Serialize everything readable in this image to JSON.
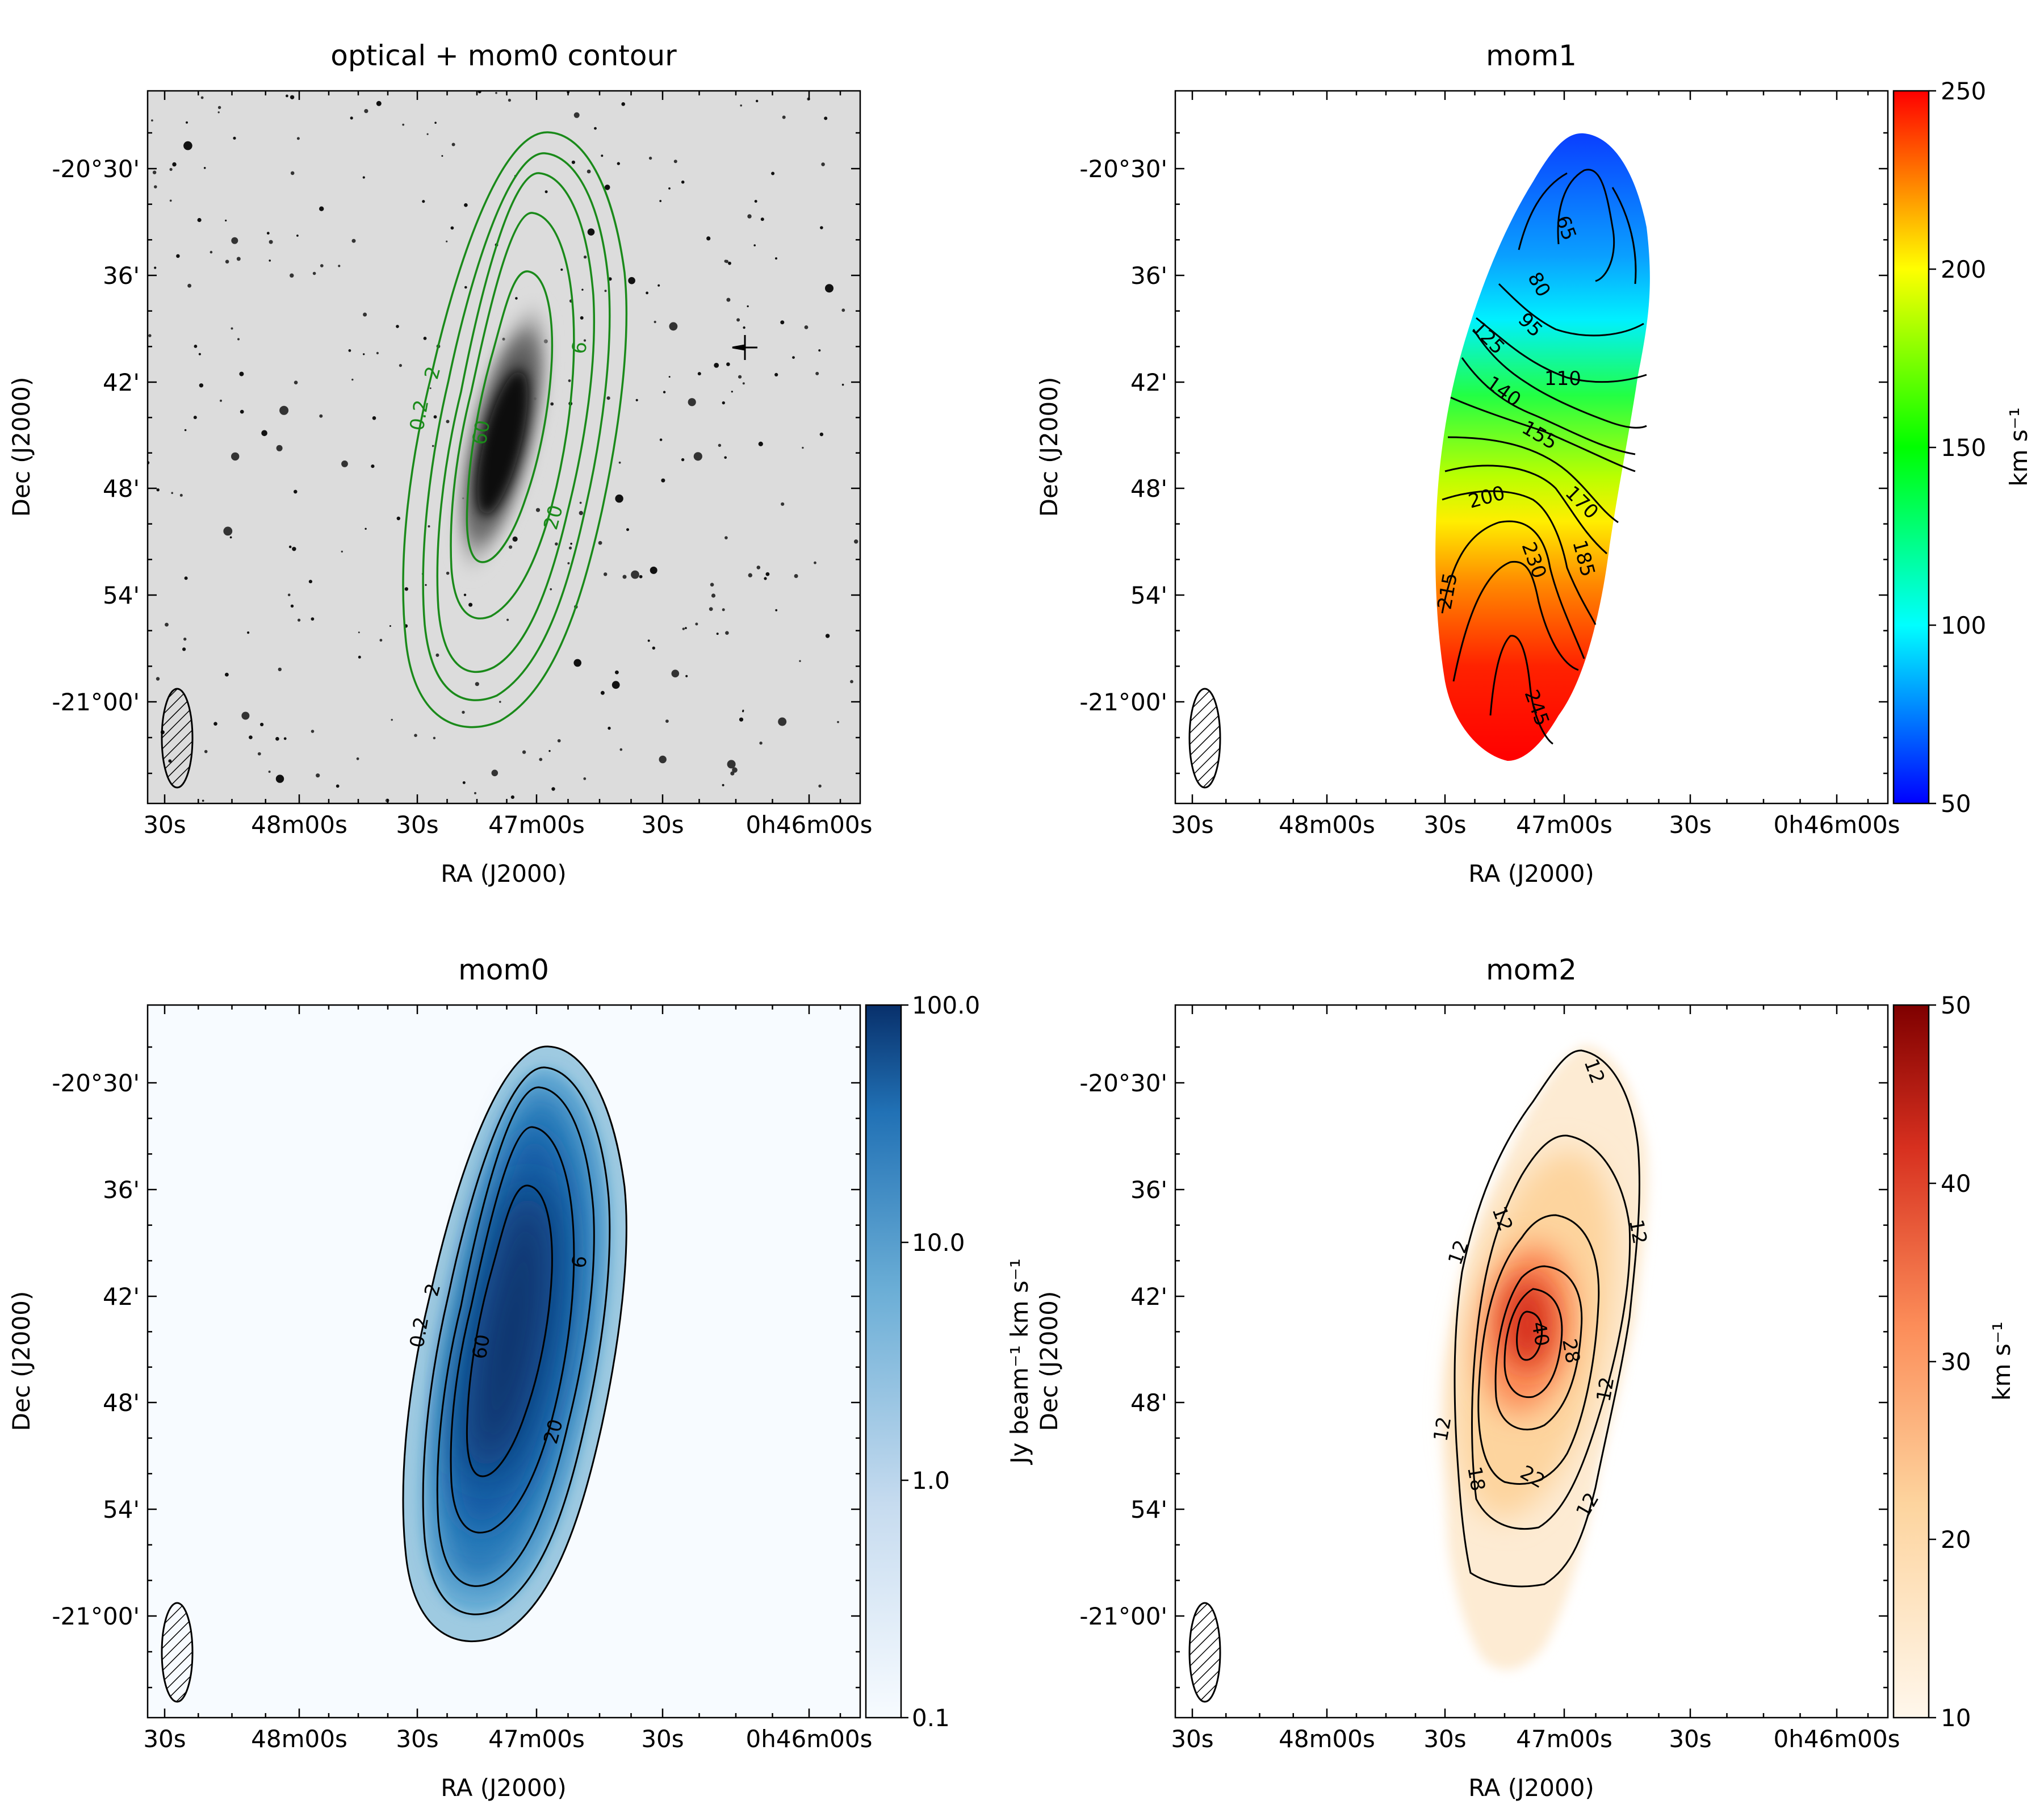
{
  "figure": {
    "panels": {
      "optical": {
        "title": "optical + mom0 contour",
        "xlabel": "RA (J2000)",
        "ylabel": "Dec (J2000)",
        "contour_color": "#1a8a1a",
        "contour_labels": [
          "0.2",
          "2",
          "6",
          "20",
          "60"
        ]
      },
      "mom1": {
        "title": "mom1",
        "xlabel": "RA (J2000)",
        "ylabel": "Dec (J2000)",
        "colorbar_label": "km s⁻¹",
        "colorbar_ticks": [
          "50",
          "100",
          "150",
          "200",
          "250"
        ],
        "contour_labels": [
          "65",
          "80",
          "95",
          "110",
          "125",
          "140",
          "155",
          "170",
          "185",
          "200",
          "215",
          "230",
          "245"
        ]
      },
      "mom0": {
        "title": "mom0",
        "xlabel": "RA (J2000)",
        "ylabel": "Dec (J2000)",
        "colorbar_label": "Jy beam⁻¹ km s⁻¹",
        "colorbar_ticks": [
          "0.1",
          "1.0",
          "10.0",
          "100.0"
        ],
        "contour_labels": [
          "0.2",
          "2",
          "6",
          "20",
          "60"
        ]
      },
      "mom2": {
        "title": "mom2",
        "xlabel": "RA (J2000)",
        "ylabel": "Dec (J2000)",
        "colorbar_label": "km s⁻¹",
        "colorbar_ticks": [
          "10",
          "20",
          "30",
          "40",
          "50"
        ],
        "contour_labels": [
          "12",
          "12",
          "12",
          "12",
          "12",
          "12",
          "18",
          "22",
          "28",
          "40",
          "12"
        ]
      }
    },
    "ra_ticks": [
      "30s",
      "48m00s",
      "30s",
      "47m00s",
      "30s",
      "0h46m00s"
    ],
    "dec_ticks": [
      "-20°30'",
      "36'",
      "42'",
      "48'",
      "54'",
      "-21°00'"
    ]
  },
  "chart_data": [
    {
      "type": "heatmap",
      "title": "optical + mom0 contour",
      "xlabel": "RA (J2000)",
      "ylabel": "Dec (J2000)",
      "x_ticks": [
        "30s",
        "48m00s",
        "30s",
        "47m00s",
        "30s",
        "0h46m00s"
      ],
      "y_ticks": [
        "-20°30'",
        "36'",
        "42'",
        "48'",
        "54'",
        "-21°00'"
      ],
      "contour_levels": [
        0.2,
        2,
        6,
        20,
        60
      ],
      "colormap": "grayscale optical image"
    },
    {
      "type": "heatmap",
      "title": "mom1",
      "xlabel": "RA (J2000)",
      "ylabel": "Dec (J2000)",
      "x_ticks": [
        "30s",
        "48m00s",
        "30s",
        "47m00s",
        "30s",
        "0h46m00s"
      ],
      "y_ticks": [
        "-20°30'",
        "36'",
        "42'",
        "48'",
        "54'",
        "-21°00'"
      ],
      "colorbar_range": [
        50,
        250
      ],
      "colorbar_scale": "linear",
      "colorbar_label": "km s⁻¹",
      "contour_levels": [
        65,
        80,
        95,
        110,
        125,
        140,
        155,
        170,
        185,
        200,
        215,
        230,
        245
      ],
      "colormap": "rainbow (blue low, red high)"
    },
    {
      "type": "heatmap",
      "title": "mom0",
      "xlabel": "RA (J2000)",
      "ylabel": "Dec (J2000)",
      "x_ticks": [
        "30s",
        "48m00s",
        "30s",
        "47m00s",
        "30s",
        "0h46m00s"
      ],
      "y_ticks": [
        "-20°30'",
        "36'",
        "42'",
        "48'",
        "54'",
        "-21°00'"
      ],
      "colorbar_range": [
        0.1,
        100
      ],
      "colorbar_scale": "log",
      "colorbar_label": "Jy beam⁻¹ km s⁻¹",
      "contour_levels": [
        0.2,
        2,
        6,
        20,
        60
      ],
      "colormap": "Blues"
    },
    {
      "type": "heatmap",
      "title": "mom2",
      "xlabel": "RA (J2000)",
      "ylabel": "Dec (J2000)",
      "x_ticks": [
        "30s",
        "48m00s",
        "30s",
        "47m00s",
        "30s",
        "0h46m00s"
      ],
      "y_ticks": [
        "-20°30'",
        "36'",
        "42'",
        "48'",
        "54'",
        "-21°00'"
      ],
      "colorbar_range": [
        10,
        50
      ],
      "colorbar_scale": "linear",
      "colorbar_label": "km s⁻¹",
      "contour_levels": [
        12,
        18,
        22,
        28,
        40
      ],
      "colormap": "OrRd"
    }
  ]
}
